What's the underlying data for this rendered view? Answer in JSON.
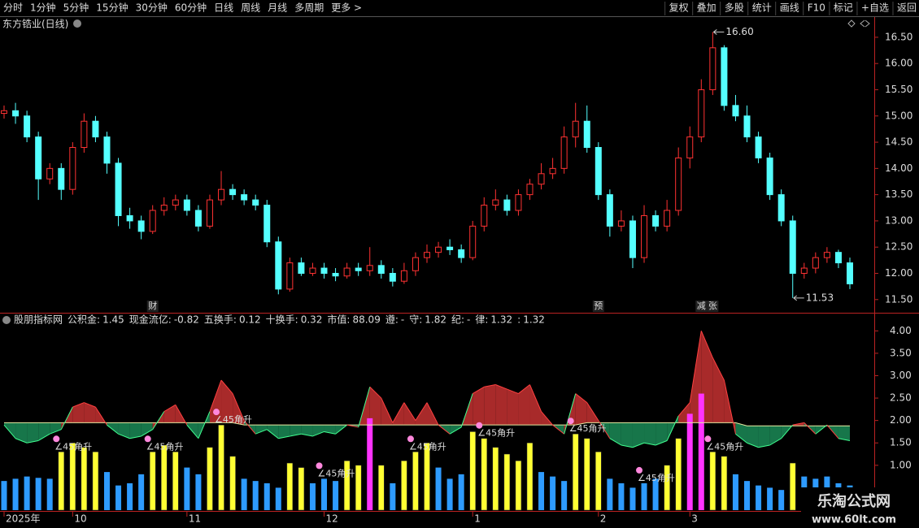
{
  "toolbar": {
    "left": [
      "分时",
      "1分钟",
      "5分钟",
      "15分钟",
      "30分钟",
      "60分钟",
      "日线",
      "周线",
      "月线",
      "多周期",
      "更多 >"
    ],
    "active": 6,
    "right": [
      "复权",
      "叠加",
      "多股",
      "统计",
      "画线",
      "F10",
      "标记",
      "+自选",
      "返回"
    ]
  },
  "watermark": {
    "title": "乐淘公式网",
    "url": "www.60lt.com"
  },
  "chart_data": [
    {
      "type": "candlestick",
      "title": "东方锆业(日线)",
      "up_color": "#ff3232",
      "down_color": "#54ffff",
      "ylim": [
        11.28,
        16.87
      ],
      "yticks": [
        {
          "value": 11.5,
          "label": "11.50"
        },
        {
          "value": 12,
          "label": "12.00"
        },
        {
          "value": 12.5,
          "label": "12.50"
        },
        {
          "value": 13,
          "label": "13.00"
        },
        {
          "value": 13.5,
          "label": "13.50"
        },
        {
          "value": 14,
          "label": "14.00"
        },
        {
          "value": 14.5,
          "label": "14.50"
        },
        {
          "value": 15,
          "label": "15.00"
        },
        {
          "value": 15.5,
          "label": "15.50"
        },
        {
          "value": 16,
          "label": "16.00"
        },
        {
          "value": 16.5,
          "label": "16.50"
        }
      ],
      "open": [
        15.05,
        15.1,
        15.0,
        14.6,
        13.8,
        14.0,
        13.6,
        14.4,
        14.9,
        14.6,
        14.1,
        13.1,
        13.0,
        12.8,
        13.2,
        13.3,
        13.4,
        13.2,
        12.9,
        13.4,
        13.6,
        13.5,
        13.4,
        13.3,
        12.6,
        11.7,
        12.2,
        12.0,
        12.1,
        12.0,
        11.95,
        12.1,
        12.05,
        12.15,
        12.0,
        11.85,
        12.05,
        12.3,
        12.4,
        12.5,
        12.45,
        12.3,
        12.9,
        13.3,
        13.4,
        13.2,
        13.5,
        13.7,
        13.9,
        14.0,
        14.6,
        14.9,
        14.4,
        13.5,
        12.9,
        13.0,
        12.3,
        13.1,
        12.9,
        13.2,
        14.2,
        14.6,
        15.5,
        16.3,
        15.2,
        15.0,
        14.6,
        14.2,
        13.5,
        13.0,
        12.0,
        12.1,
        12.3,
        12.4,
        12.2
      ],
      "close": [
        15.1,
        15.0,
        14.6,
        13.8,
        14.0,
        13.6,
        14.4,
        14.9,
        14.6,
        14.1,
        13.1,
        13.0,
        12.8,
        13.2,
        13.3,
        13.4,
        13.2,
        12.9,
        13.4,
        13.6,
        13.5,
        13.4,
        13.3,
        12.6,
        11.7,
        12.2,
        12.0,
        12.1,
        12.0,
        11.95,
        12.1,
        12.05,
        12.15,
        12.0,
        11.85,
        12.05,
        12.3,
        12.4,
        12.5,
        12.45,
        12.3,
        12.9,
        13.3,
        13.4,
        13.2,
        13.5,
        13.7,
        13.9,
        14.0,
        14.6,
        14.9,
        14.4,
        13.5,
        12.9,
        13.0,
        12.3,
        13.1,
        12.9,
        13.2,
        14.2,
        14.6,
        15.5,
        16.3,
        15.2,
        15.0,
        14.6,
        14.2,
        13.5,
        13.0,
        12.0,
        12.1,
        12.3,
        12.4,
        12.2,
        11.8
      ],
      "high": [
        15.2,
        15.25,
        15.1,
        14.7,
        14.1,
        14.1,
        14.5,
        15.05,
        15.0,
        14.7,
        14.2,
        13.25,
        13.1,
        13.3,
        13.45,
        13.5,
        13.5,
        13.3,
        13.5,
        13.95,
        13.7,
        13.6,
        13.5,
        13.4,
        12.7,
        12.3,
        12.3,
        12.2,
        12.2,
        12.1,
        12.2,
        12.2,
        12.5,
        12.25,
        12.1,
        12.2,
        12.4,
        12.55,
        12.6,
        12.65,
        12.55,
        13.0,
        13.45,
        13.6,
        13.5,
        13.6,
        13.8,
        14.1,
        14.2,
        14.8,
        15.25,
        15.2,
        14.5,
        13.6,
        13.2,
        13.1,
        13.3,
        13.2,
        13.4,
        14.4,
        14.8,
        15.7,
        16.6,
        16.35,
        15.4,
        15.2,
        14.7,
        14.3,
        13.6,
        13.1,
        12.2,
        12.4,
        12.5,
        12.45,
        12.3
      ],
      "low": [
        14.95,
        14.85,
        14.5,
        13.4,
        13.7,
        13.4,
        13.5,
        14.3,
        14.5,
        13.9,
        12.9,
        12.85,
        12.65,
        12.75,
        13.1,
        13.2,
        13.1,
        12.8,
        12.85,
        13.3,
        13.4,
        13.3,
        13.2,
        12.5,
        11.6,
        11.65,
        11.95,
        11.95,
        11.9,
        11.85,
        11.9,
        11.95,
        11.95,
        11.9,
        11.75,
        11.8,
        11.95,
        12.2,
        12.3,
        12.35,
        12.2,
        12.25,
        12.8,
        13.2,
        13.1,
        13.1,
        13.4,
        13.6,
        13.8,
        13.9,
        14.4,
        14.3,
        13.4,
        12.7,
        12.8,
        12.1,
        12.2,
        12.8,
        12.8,
        13.1,
        14.0,
        14.5,
        15.4,
        15.1,
        14.9,
        14.5,
        14.1,
        13.4,
        12.9,
        11.53,
        11.9,
        12.0,
        12.2,
        12.1,
        11.7
      ],
      "max_label": "16.60",
      "min_label": "11.53",
      "events": [
        null,
        null,
        null,
        null,
        null,
        null,
        null,
        null,
        null,
        null,
        null,
        null,
        null,
        {
          "label": "财",
          "color": "#3399ff"
        },
        null,
        null,
        null,
        null,
        null,
        null,
        null,
        null,
        null,
        null,
        null,
        null,
        null,
        null,
        null,
        null,
        null,
        null,
        null,
        null,
        null,
        null,
        null,
        null,
        null,
        null,
        null,
        null,
        null,
        null,
        null,
        null,
        null,
        null,
        null,
        null,
        null,
        null,
        {
          "label": "预",
          "color": "#ff9933"
        },
        null,
        null,
        null,
        null,
        null,
        null,
        null,
        null,
        {
          "label": "减",
          "color": "#33cc66"
        },
        {
          "label": "张",
          "color": "#ff3232"
        },
        null,
        null,
        null,
        null,
        null,
        null,
        null,
        null,
        null,
        null,
        null,
        null
      ]
    },
    {
      "type": "indicator",
      "title": "股朋指标网",
      "legend": [
        {
          "label": "公积金:",
          "value": "1.45",
          "color": "#ff3232"
        },
        {
          "label": "现金流亿:",
          "value": "-0.82",
          "color": "#ffffff"
        },
        {
          "label": "五换手:",
          "value": "0.12",
          "color": "#ffff33"
        },
        {
          "label": "十换手:",
          "value": "0.32",
          "color": "#ffffff"
        },
        {
          "label": "市值:",
          "value": "88.09",
          "color": "#ff33ff"
        },
        {
          "label": "遵:",
          "value": "-",
          "color": "#ff3232"
        },
        {
          "label": "守:",
          "value": "1.82",
          "color": "#3399ff"
        },
        {
          "label": "纪:",
          "value": "-",
          "color": "#ffff33"
        },
        {
          "label": "律:",
          "value": "1.32",
          "color": "#33cc66"
        },
        {
          "label": ":",
          "value": "1.32",
          "color": "#54ffff"
        }
      ],
      "ylim": [
        0,
        4.35
      ],
      "yticks": [
        {
          "value": 1,
          "label": "1.00"
        },
        {
          "value": 1.5,
          "label": "1.50"
        },
        {
          "value": 2,
          "label": "2.00"
        },
        {
          "value": 2.5,
          "label": "2.50"
        },
        {
          "value": 3,
          "label": "3.00"
        },
        {
          "value": 3.5,
          "label": "3.50"
        },
        {
          "value": 4,
          "label": "4.00"
        }
      ],
      "up_fill": "#a82a2a",
      "down_fill": "#17764a",
      "base_color": "#e8e8a0",
      "line_a": [
        1.95,
        1.95,
        1.95,
        1.95,
        1.95,
        1.95,
        1.95,
        1.95,
        1.95,
        1.95,
        1.95,
        1.95,
        1.95,
        1.95,
        1.95,
        1.95,
        1.95,
        1.95,
        1.95,
        1.95,
        1.95,
        1.9,
        1.9,
        1.9,
        1.9,
        1.9,
        1.9,
        1.9,
        1.9,
        1.9,
        1.9,
        1.9,
        1.9,
        1.9,
        1.9,
        1.9,
        1.9,
        1.9,
        1.9,
        1.9,
        1.9,
        1.9,
        1.9,
        1.9,
        1.9,
        1.9,
        1.9,
        1.9,
        1.9,
        1.9,
        1.9,
        1.95,
        1.95,
        1.95,
        1.95,
        1.95,
        1.95,
        1.95,
        1.95,
        1.95,
        1.95,
        1.95,
        1.95,
        1.95,
        1.95,
        1.88,
        1.88,
        1.88,
        1.88,
        1.88,
        1.88,
        1.88,
        1.88,
        1.88,
        1.88
      ],
      "line_b": [
        1.9,
        1.6,
        1.5,
        1.55,
        1.7,
        1.8,
        2.3,
        2.4,
        2.3,
        1.9,
        1.7,
        1.6,
        1.65,
        1.8,
        2.2,
        2.35,
        1.9,
        1.6,
        2.2,
        2.9,
        2.6,
        2.0,
        1.7,
        1.8,
        1.6,
        1.65,
        1.7,
        1.65,
        1.75,
        1.7,
        1.9,
        1.85,
        2.75,
        2.5,
        1.95,
        2.4,
        2.0,
        2.4,
        1.9,
        1.7,
        1.85,
        2.6,
        2.75,
        2.8,
        2.7,
        2.6,
        2.8,
        2.2,
        1.9,
        1.7,
        2.6,
        2.4,
        2.0,
        1.6,
        1.45,
        1.4,
        1.5,
        1.45,
        1.55,
        2.1,
        2.4,
        4.0,
        3.4,
        2.9,
        1.7,
        1.5,
        1.4,
        1.45,
        1.6,
        1.9,
        1.95,
        1.7,
        1.9,
        1.6,
        1.55
      ],
      "bars": {
        "values": [
          0.65,
          0.7,
          0.75,
          0.72,
          0.7,
          1.3,
          1.5,
          1.4,
          1.3,
          0.85,
          0.55,
          0.6,
          0.8,
          1.3,
          1.45,
          1.3,
          0.95,
          0.8,
          1.4,
          1.9,
          1.2,
          0.7,
          0.65,
          0.6,
          0.5,
          1.05,
          0.95,
          0.6,
          0.7,
          0.65,
          1.1,
          1.0,
          2.05,
          1.0,
          0.6,
          1.1,
          1.3,
          1.5,
          0.95,
          0.7,
          0.8,
          1.75,
          1.6,
          1.4,
          1.25,
          1.1,
          1.5,
          0.85,
          0.75,
          0.65,
          1.7,
          1.6,
          1.3,
          0.7,
          0.6,
          0.5,
          0.6,
          0.7,
          1.0,
          1.6,
          2.15,
          2.6,
          1.3,
          1.2,
          0.8,
          0.65,
          0.55,
          0.5,
          0.45,
          1.05,
          0.75,
          0.7,
          0.75,
          0.6,
          0.55
        ],
        "colors": [
          "#2e9bff",
          "#2e9bff",
          "#2e9bff",
          "#2e9bff",
          "#2e9bff",
          "#ffff33",
          "#ffff33",
          "#ffff33",
          "#ffff33",
          "#2e9bff",
          "#2e9bff",
          "#2e9bff",
          "#2e9bff",
          "#ffff33",
          "#ffff33",
          "#ffff33",
          "#2e9bff",
          "#2e9bff",
          "#ffff33",
          "#ffff33",
          "#ffff33",
          "#2e9bff",
          "#2e9bff",
          "#2e9bff",
          "#2e9bff",
          "#ffff33",
          "#ffff33",
          "#2e9bff",
          "#2e9bff",
          "#2e9bff",
          "#ffff33",
          "#ffff33",
          "#ff33ff",
          "#ffff33",
          "#2e9bff",
          "#ffff33",
          "#ffff33",
          "#ffff33",
          "#2e9bff",
          "#2e9bff",
          "#2e9bff",
          "#ffff33",
          "#ffff33",
          "#ffff33",
          "#ffff33",
          "#ffff33",
          "#ffff33",
          "#2e9bff",
          "#2e9bff",
          "#2e9bff",
          "#ffff33",
          "#ffff33",
          "#ffff33",
          "#2e9bff",
          "#2e9bff",
          "#2e9bff",
          "#2e9bff",
          "#2e9bff",
          "#ffff33",
          "#ffff33",
          "#ff33ff",
          "#ff33ff",
          "#ffff33",
          "#ffff33",
          "#2e9bff",
          "#2e9bff",
          "#2e9bff",
          "#2e9bff",
          "#2e9bff",
          "#ffff33",
          "#2e9bff",
          "#2e9bff",
          "#2e9bff",
          "#2e9bff",
          "#2e9bff"
        ]
      },
      "signals": [
        null,
        null,
        null,
        null,
        null,
        "∠45角升",
        null,
        null,
        null,
        null,
        null,
        null,
        null,
        "∠45角升",
        null,
        null,
        null,
        null,
        null,
        "∠45角升",
        null,
        null,
        null,
        null,
        null,
        null,
        null,
        null,
        "∠45角升",
        null,
        null,
        null,
        null,
        null,
        null,
        null,
        "∠45角升",
        null,
        null,
        null,
        null,
        null,
        "∠45角升",
        null,
        null,
        null,
        null,
        null,
        null,
        null,
        "∠45角升",
        null,
        null,
        null,
        null,
        null,
        "∠45角升",
        null,
        null,
        null,
        null,
        null,
        "∠45角升",
        null,
        null,
        null,
        null,
        null,
        null,
        null,
        null,
        null,
        null,
        null,
        null
      ],
      "date_labels": [
        "2025年",
        null,
        null,
        null,
        null,
        null,
        "10",
        null,
        null,
        null,
        null,
        null,
        null,
        null,
        null,
        null,
        "11",
        null,
        null,
        null,
        null,
        null,
        null,
        null,
        null,
        null,
        null,
        null,
        "12",
        null,
        null,
        null,
        null,
        null,
        null,
        null,
        null,
        null,
        null,
        null,
        null,
        "1",
        null,
        null,
        null,
        null,
        null,
        null,
        null,
        null,
        null,
        null,
        "2",
        null,
        null,
        null,
        null,
        null,
        null,
        null,
        "3",
        null,
        null,
        null,
        null,
        null,
        null,
        null,
        null,
        null,
        null,
        null,
        null,
        null,
        null
      ]
    }
  ]
}
